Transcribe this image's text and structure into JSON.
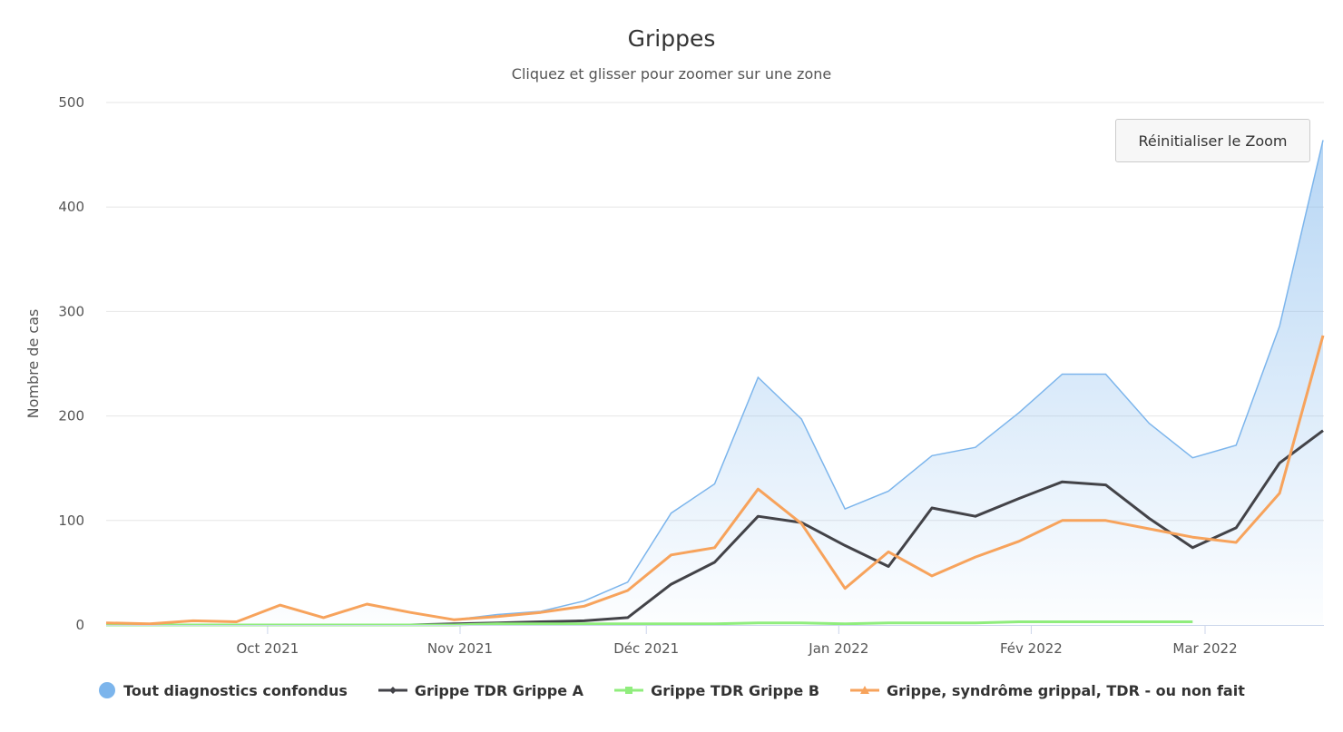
{
  "chart_data": {
    "type": "line",
    "title": "Grippes",
    "subtitle": "Cliquez et glisser pour zoomer sur une zone",
    "ylabel": "Nombre de cas",
    "ylim": [
      0,
      500
    ],
    "yticks": [
      0,
      100,
      200,
      300,
      400,
      500
    ],
    "xticks": [
      {
        "date": "2021-10-01",
        "label": "Oct 2021"
      },
      {
        "date": "2021-11-01",
        "label": "Nov 2021"
      },
      {
        "date": "2021-12-01",
        "label": "Déc 2021"
      },
      {
        "date": "2022-01-01",
        "label": "Jan 2022"
      },
      {
        "date": "2022-02-01",
        "label": "Fév 2022"
      },
      {
        "date": "2022-03-01",
        "label": "Mar 2022"
      }
    ],
    "xrange": [
      "2021-09-05",
      "2022-03-20"
    ],
    "grid": true,
    "legend_position": "bottom",
    "x": [
      "2021-09-05",
      "2021-09-12",
      "2021-09-19",
      "2021-09-26",
      "2021-10-03",
      "2021-10-10",
      "2021-10-17",
      "2021-10-24",
      "2021-10-31",
      "2021-11-07",
      "2021-11-14",
      "2021-11-21",
      "2021-11-28",
      "2021-12-05",
      "2021-12-12",
      "2021-12-19",
      "2021-12-26",
      "2022-01-02",
      "2022-01-09",
      "2022-01-16",
      "2022-01-23",
      "2022-01-30",
      "2022-02-06",
      "2022-02-13",
      "2022-02-20",
      "2022-02-27",
      "2022-03-06",
      "2022-03-13",
      "2022-03-20"
    ],
    "series": [
      {
        "name": "Tout diagnostics confondus",
        "type": "area",
        "color": "#7cb5ec",
        "marker": "circle",
        "values": [
          2,
          1,
          4,
          3,
          19,
          7,
          20,
          12,
          5,
          10,
          13,
          23,
          41,
          107,
          135,
          237,
          197,
          111,
          128,
          162,
          170,
          203,
          240,
          240,
          193,
          160,
          172,
          286,
          464
        ]
      },
      {
        "name": "Grippe TDR Grippe A",
        "type": "line",
        "color": "#434348",
        "marker": "diamond",
        "values": [
          0,
          0,
          0,
          0,
          0,
          0,
          0,
          0,
          1,
          2,
          3,
          4,
          7,
          39,
          60,
          104,
          98,
          76,
          56,
          112,
          104,
          121,
          137,
          134,
          102,
          74,
          93,
          155,
          186
        ]
      },
      {
        "name": "Grippe TDR Grippe B",
        "type": "line",
        "color": "#90ed7d",
        "marker": "square",
        "values": [
          0,
          0,
          0,
          0,
          0,
          0,
          0,
          0,
          0,
          1,
          1,
          1,
          1,
          1,
          1,
          2,
          2,
          1,
          2,
          2,
          2,
          3,
          3,
          3,
          3,
          3,
          null,
          null,
          null
        ]
      },
      {
        "name": "Grippe, syndrôme grippal, TDR - ou non fait",
        "type": "line",
        "color": "#f7a35c",
        "marker": "triangle",
        "values": [
          2,
          1,
          4,
          3,
          19,
          7,
          20,
          12,
          5,
          8,
          12,
          18,
          33,
          67,
          74,
          130,
          97,
          35,
          70,
          47,
          65,
          80,
          100,
          100,
          92,
          84,
          79,
          126,
          277
        ]
      }
    ]
  },
  "reset_zoom_label": "Réinitialiser le Zoom"
}
